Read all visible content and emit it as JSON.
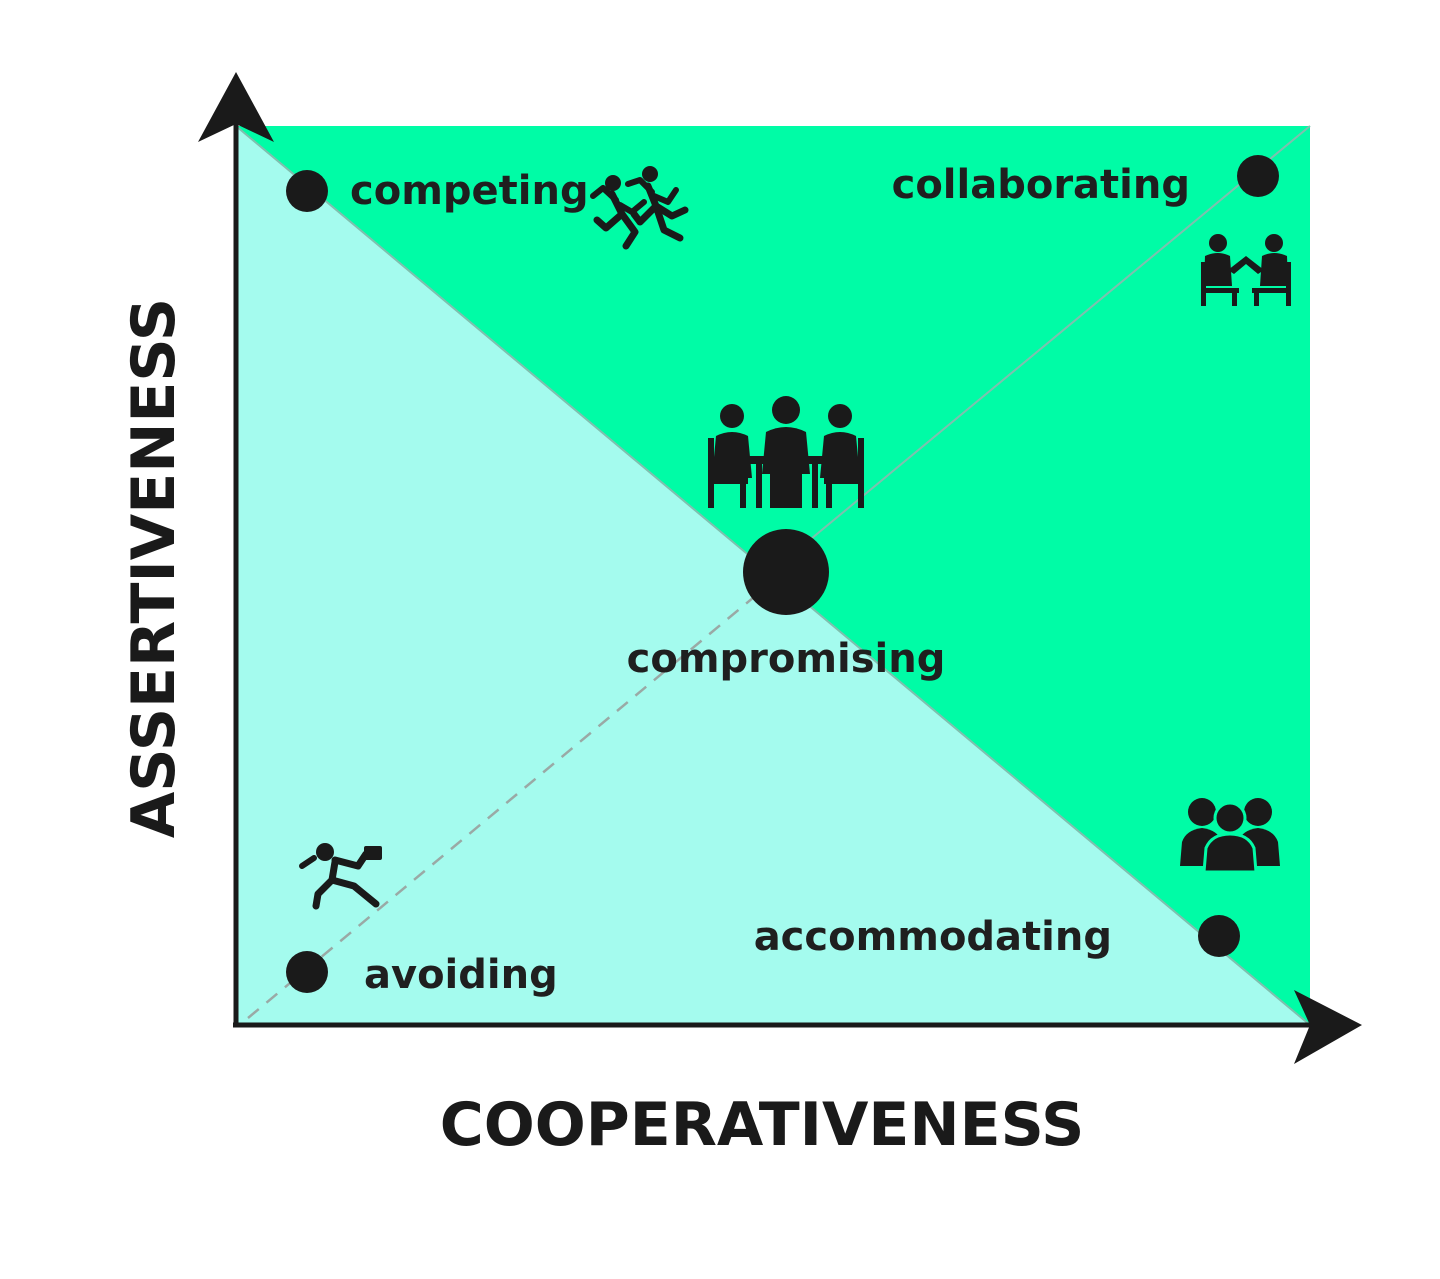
{
  "axes": {
    "x_title": "COOPERATIVENESS",
    "y_title": "ASSERTIVENESS"
  },
  "colors": {
    "upper_triangle": "#00fca6",
    "lower_triangle": "#a4fbee",
    "ink": "#1a1a1a",
    "diagonal": "#7fbfae",
    "dashed": "#9aa9a5"
  },
  "modes": {
    "competing": {
      "label": "competing",
      "icon": "runners-icon"
    },
    "collaborating": {
      "label": "collaborating",
      "icon": "handshake-meeting-icon"
    },
    "compromising": {
      "label": "compromising",
      "icon": "meeting-table-icon"
    },
    "avoiding": {
      "label": "avoiding",
      "icon": "fleeing-person-icon"
    },
    "accommodating": {
      "label": "accommodating",
      "icon": "group-people-icon"
    }
  }
}
